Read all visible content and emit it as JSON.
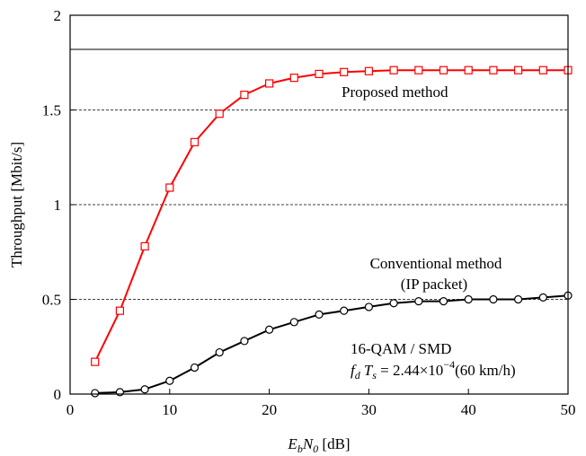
{
  "chart_data": {
    "type": "line",
    "title": "",
    "xlabel": {
      "pre_italic": "E",
      "pre_sub": "b",
      "mid_italic": "N",
      "mid_sub": "0",
      "unit": " [dB]"
    },
    "ylabel": "Throughput [Mbit/s]",
    "xlim": [
      0,
      50
    ],
    "ylim": [
      0,
      2
    ],
    "x_ticks": [
      0,
      10,
      20,
      30,
      40,
      50
    ],
    "x_tick_labels": [
      "0",
      "10",
      "20",
      "30",
      "40",
      "50"
    ],
    "y_ticks": [
      0,
      0.5,
      1,
      1.5,
      2
    ],
    "y_tick_labels": [
      "0",
      "0.5",
      "1",
      "1.5",
      "2"
    ],
    "grid": {
      "horizontal_dashed": [
        0.5,
        1,
        1.5
      ],
      "solid_reference": 1.82
    },
    "series": [
      {
        "name": "Proposed method",
        "color": "#ff0000",
        "marker": "square",
        "x": [
          2.5,
          5,
          7.5,
          10,
          12.5,
          15,
          17.5,
          20,
          22.5,
          25,
          27.5,
          30,
          32.5,
          35,
          37.5,
          40,
          42.5,
          45,
          47.5,
          50
        ],
        "y": [
          0.17,
          0.44,
          0.78,
          1.09,
          1.33,
          1.48,
          1.58,
          1.64,
          1.67,
          1.69,
          1.7,
          1.705,
          1.71,
          1.71,
          1.71,
          1.71,
          1.71,
          1.71,
          1.71,
          1.71
        ]
      },
      {
        "name": "Conventional method (IP packet)",
        "color": "#000000",
        "marker": "circle",
        "x": [
          2.5,
          5,
          7.5,
          10,
          12.5,
          15,
          17.5,
          20,
          22.5,
          25,
          27.5,
          30,
          32.5,
          35,
          37.5,
          40,
          42.5,
          45,
          47.5,
          50
        ],
        "y": [
          0.005,
          0.01,
          0.025,
          0.07,
          0.14,
          0.22,
          0.28,
          0.34,
          0.38,
          0.42,
          0.44,
          0.46,
          0.48,
          0.49,
          0.49,
          0.5,
          0.5,
          0.5,
          0.51,
          0.52
        ]
      }
    ],
    "annotations": {
      "proposed": "Proposed method",
      "conventional_line1": "Conventional method",
      "conventional_line2": "(IP packet)",
      "modulation": "16-QAM / SMD",
      "doppler": {
        "f": "f",
        "f_sub": "d",
        "T": "T",
        "T_sub": "s",
        "eq": " = 2.44×10",
        "exp": "−4",
        "tail": "(60 km/h)"
      }
    }
  }
}
